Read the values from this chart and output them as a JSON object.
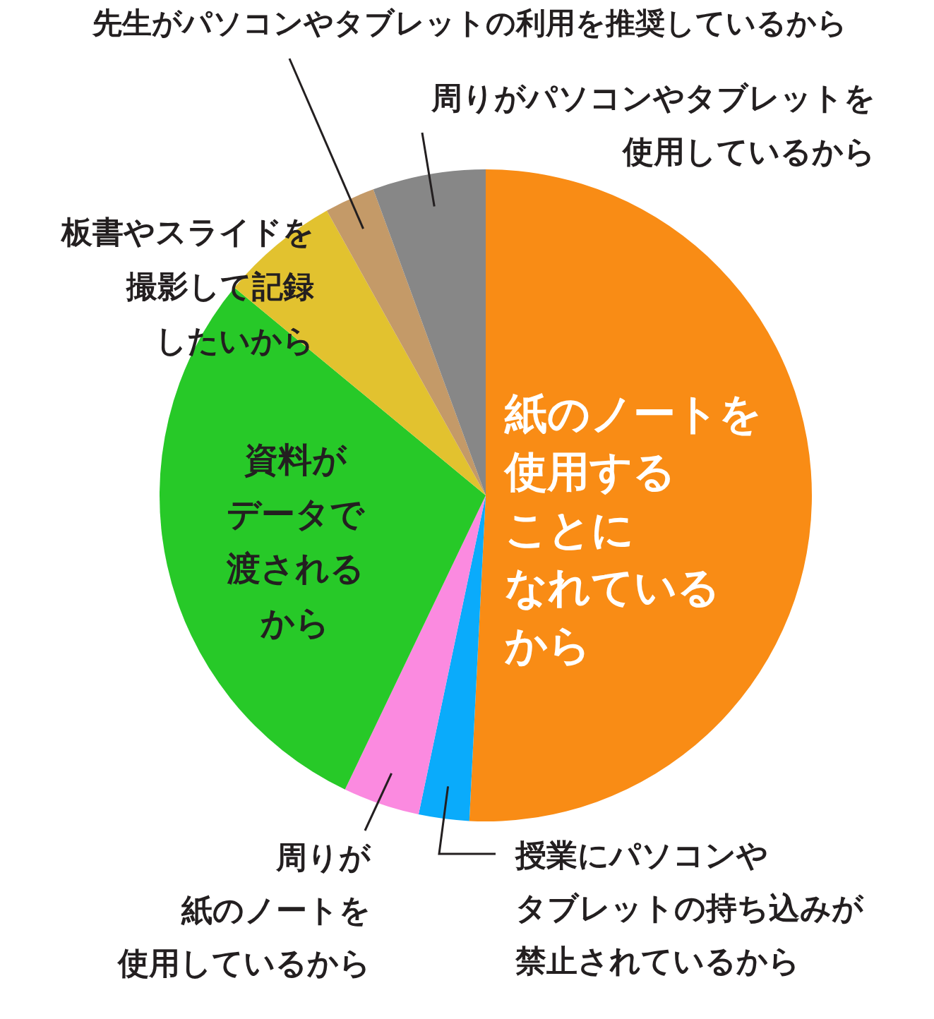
{
  "chart_data": {
    "type": "pie",
    "categories": [
      "紙のノートを使用することになれているから",
      "授業にパソコンやタブレットの持ち込みが禁止されているから",
      "周りが紙のノートを使用しているから",
      "資料がデータで渡されるから",
      "板書やスライドを撮影して記録したいから",
      "先生がパソコンやタブレットの利用を推奨しているから",
      "周りがパソコンやタブレットを使用しているから"
    ],
    "values": [
      50.8,
      2.5,
      3.8,
      28.9,
      5.9,
      2.5,
      5.6
    ],
    "colors": [
      "#f98c15",
      "#0aabfb",
      "#fb8ae0",
      "#27c928",
      "#e2c22f",
      "#c49a68",
      "#878787"
    ]
  }
}
